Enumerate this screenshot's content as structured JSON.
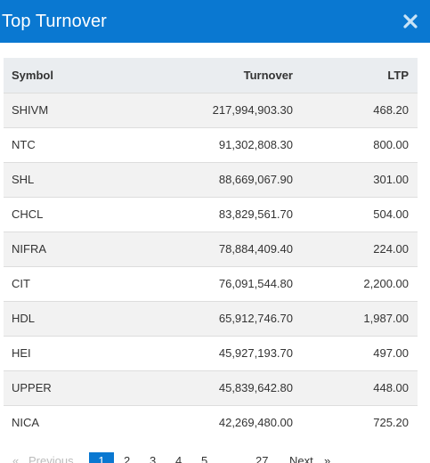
{
  "modal": {
    "title": "Top Turnover",
    "close_label": "×"
  },
  "table": {
    "headers": {
      "symbol": "Symbol",
      "turnover": "Turnover",
      "ltp": "LTP"
    },
    "rows": [
      {
        "symbol": "SHIVM",
        "turnover": "217,994,903.30",
        "ltp": "468.20"
      },
      {
        "symbol": "NTC",
        "turnover": "91,302,808.30",
        "ltp": "800.00"
      },
      {
        "symbol": "SHL",
        "turnover": "88,669,067.90",
        "ltp": "301.00"
      },
      {
        "symbol": "CHCL",
        "turnover": "83,829,561.70",
        "ltp": "504.00"
      },
      {
        "symbol": "NIFRA",
        "turnover": "78,884,409.40",
        "ltp": "224.00"
      },
      {
        "symbol": "CIT",
        "turnover": "76,091,544.80",
        "ltp": "2,200.00"
      },
      {
        "symbol": "HDL",
        "turnover": "65,912,746.70",
        "ltp": "1,987.00"
      },
      {
        "symbol": "HEI",
        "turnover": "45,927,193.70",
        "ltp": "497.00"
      },
      {
        "symbol": "UPPER",
        "turnover": "45,839,642.80",
        "ltp": "448.00"
      },
      {
        "symbol": "NICA",
        "turnover": "42,269,480.00",
        "ltp": "725.20"
      }
    ]
  },
  "pagination": {
    "first_label": "«",
    "previous_label": "Previous",
    "pages": [
      "1",
      "2",
      "3",
      "4",
      "5"
    ],
    "ellipsis": "…",
    "last_page": "27",
    "next_label": "Next",
    "last_label": "»",
    "active_page": "1"
  },
  "colors": {
    "accent": "#0a78d1",
    "header_row": "#eaedf0",
    "stripe": "#f2f2f2"
  }
}
